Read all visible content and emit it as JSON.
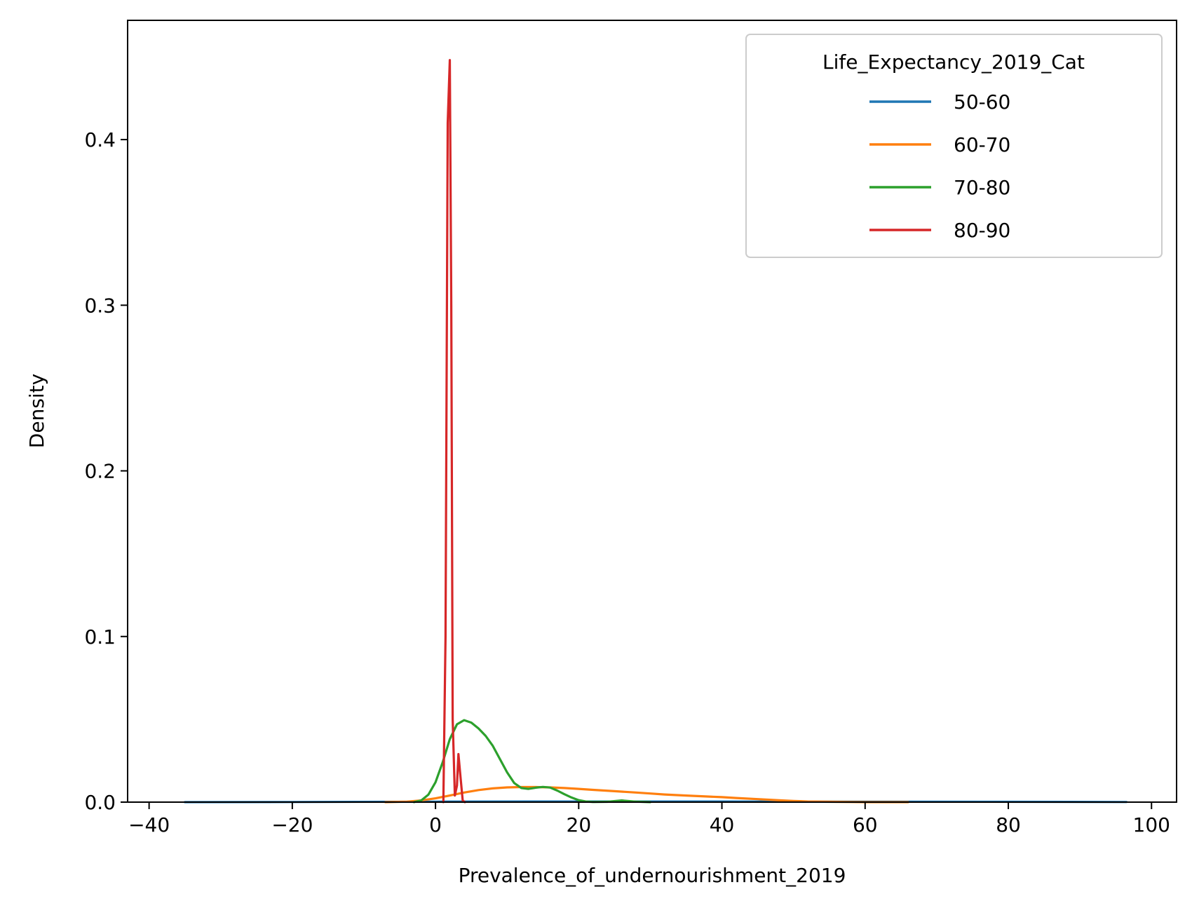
{
  "chart_data": {
    "type": "line",
    "title": "",
    "xlabel": "Prevalence_of_undernourishment_2019",
    "ylabel": "Density",
    "xlim": [
      -43,
      103.5
    ],
    "ylim": [
      0,
      0.472
    ],
    "xticks": [
      -40,
      -20,
      0,
      20,
      40,
      60,
      80,
      100
    ],
    "xtick_labels": [
      "−40",
      "−20",
      "0",
      "20",
      "40",
      "60",
      "80",
      "100"
    ],
    "yticks": [
      0.0,
      0.1,
      0.2,
      0.3,
      0.4
    ],
    "ytick_labels": [
      "0.0",
      "0.1",
      "0.2",
      "0.3",
      "0.4"
    ],
    "grid": false,
    "legend": {
      "title": "Life_Expectancy_2019_Cat",
      "placement": "upper right"
    },
    "series": [
      {
        "name": "50-60",
        "color": "#1f77b4",
        "x": [
          -35,
          -20,
          0,
          20,
          40,
          60,
          80,
          96.5
        ],
        "y": [
          0.0,
          0.0001,
          0.0003,
          0.0004,
          0.0004,
          0.0003,
          0.0002,
          0.0001
        ]
      },
      {
        "name": "60-70",
        "color": "#ff7f0e",
        "x": [
          -7,
          -4,
          -2,
          0,
          2,
          4,
          6,
          8,
          10,
          12,
          14,
          16,
          18,
          20,
          22,
          25,
          28,
          30,
          32,
          35,
          38,
          40,
          42,
          45,
          48,
          50,
          52,
          55,
          58,
          60,
          62,
          66
        ],
        "y": [
          0.0,
          0.0003,
          0.001,
          0.0023,
          0.004,
          0.0058,
          0.0073,
          0.0083,
          0.0089,
          0.0091,
          0.0091,
          0.0089,
          0.0085,
          0.008,
          0.0074,
          0.0066,
          0.0058,
          0.0052,
          0.0046,
          0.004,
          0.0034,
          0.003,
          0.0025,
          0.0018,
          0.0011,
          0.0007,
          0.0004,
          0.0002,
          0.0001,
          0.0,
          0.0,
          0.0
        ]
      },
      {
        "name": "70-80",
        "color": "#2ca02c",
        "x": [
          -3,
          -2,
          -1,
          0,
          1,
          2,
          3,
          4,
          5,
          6,
          7,
          8,
          9,
          10,
          11,
          12,
          13,
          14,
          15,
          16,
          17,
          18,
          19,
          20,
          21,
          22,
          24,
          26,
          28,
          30
        ],
        "y": [
          0.0,
          0.001,
          0.0045,
          0.012,
          0.024,
          0.038,
          0.047,
          0.0495,
          0.048,
          0.0445,
          0.04,
          0.034,
          0.026,
          0.018,
          0.0115,
          0.0085,
          0.008,
          0.0087,
          0.0092,
          0.0088,
          0.007,
          0.0048,
          0.0028,
          0.0012,
          0.0004,
          0.0001,
          0.0002,
          0.001,
          0.0003,
          0.0
        ]
      },
      {
        "name": "80-90",
        "color": "#d62728",
        "x": [
          1.1,
          1.4,
          1.7,
          2.0,
          2.2,
          2.4,
          2.7,
          3.0,
          3.2,
          3.5,
          3.8,
          4.1
        ],
        "y": [
          0.0,
          0.1,
          0.41,
          0.448,
          0.3,
          0.05,
          0.004,
          0.01,
          0.029,
          0.015,
          0.001,
          0.0
        ]
      }
    ]
  }
}
